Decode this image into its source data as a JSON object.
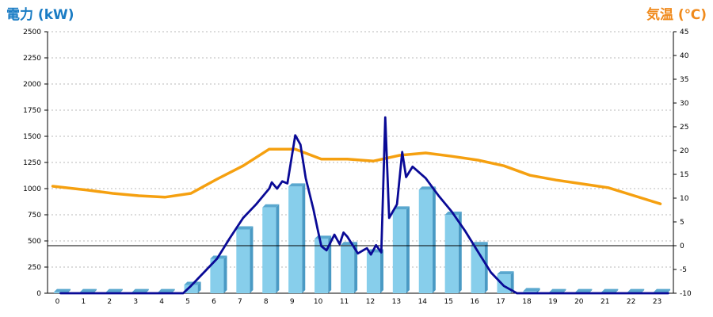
{
  "chart_data": {
    "type": "bar",
    "left_axis_label": "電力 (kW)",
    "right_axis_label": "気温 (℃)",
    "left_ylim": [
      0,
      2500
    ],
    "left_ticks": [
      0,
      250,
      500,
      750,
      1000,
      1250,
      1500,
      1750,
      2000,
      2250,
      2500
    ],
    "right_ylim": [
      -10,
      45
    ],
    "right_ticks": [
      -10,
      -5,
      0,
      5,
      10,
      15,
      20,
      25,
      30,
      35,
      40,
      45
    ],
    "categories": [
      "0",
      "1",
      "2",
      "3",
      "4",
      "5",
      "6",
      "7",
      "8",
      "9",
      "10",
      "11",
      "12",
      "13",
      "14",
      "15",
      "16",
      "17",
      "18",
      "19",
      "20",
      "21",
      "22",
      "23"
    ],
    "bars": {
      "values": [
        10,
        10,
        10,
        10,
        10,
        80,
        330,
        610,
        820,
        1020,
        520,
        460,
        390,
        800,
        990,
        750,
        460,
        180,
        20,
        10,
        10,
        10,
        10,
        10
      ]
    },
    "power_line": {
      "color": "#0a0a96",
      "points": [
        [
          0,
          0
        ],
        [
          4.7,
          0
        ],
        [
          5.0,
          70
        ],
        [
          5.5,
          200
        ],
        [
          6.0,
          330
        ],
        [
          6.5,
          530
        ],
        [
          7.0,
          720
        ],
        [
          7.5,
          850
        ],
        [
          8.0,
          1000
        ],
        [
          8.1,
          1060
        ],
        [
          8.3,
          1000
        ],
        [
          8.5,
          1070
        ],
        [
          8.7,
          1050
        ],
        [
          9.0,
          1510
        ],
        [
          9.2,
          1420
        ],
        [
          9.4,
          1100
        ],
        [
          9.7,
          800
        ],
        [
          9.85,
          620
        ],
        [
          10.0,
          450
        ],
        [
          10.2,
          410
        ],
        [
          10.5,
          560
        ],
        [
          10.7,
          470
        ],
        [
          10.85,
          580
        ],
        [
          11.0,
          540
        ],
        [
          11.2,
          460
        ],
        [
          11.4,
          380
        ],
        [
          11.6,
          410
        ],
        [
          11.75,
          430
        ],
        [
          11.9,
          370
        ],
        [
          12.1,
          460
        ],
        [
          12.3,
          390
        ],
        [
          12.45,
          1680
        ],
        [
          12.6,
          720
        ],
        [
          12.9,
          850
        ],
        [
          13.1,
          1350
        ],
        [
          13.25,
          1110
        ],
        [
          13.5,
          1210
        ],
        [
          14.0,
          1100
        ],
        [
          14.5,
          930
        ],
        [
          15.0,
          780
        ],
        [
          15.5,
          600
        ],
        [
          16.0,
          400
        ],
        [
          16.5,
          200
        ],
        [
          17.0,
          70
        ],
        [
          17.5,
          0
        ],
        [
          23.3,
          0
        ]
      ]
    },
    "temperature_line": {
      "color": "#f5a010",
      "points": [
        [
          -0.3,
          12.5
        ],
        [
          1,
          11.7
        ],
        [
          2,
          11.0
        ],
        [
          3,
          10.5
        ],
        [
          4,
          10.2
        ],
        [
          5,
          11.0
        ],
        [
          6,
          14.0
        ],
        [
          7,
          16.8
        ],
        [
          8,
          20.3
        ],
        [
          9,
          20.3
        ],
        [
          10,
          18.2
        ],
        [
          11,
          18.2
        ],
        [
          12,
          17.8
        ],
        [
          13,
          19.0
        ],
        [
          14,
          19.5
        ],
        [
          15,
          18.8
        ],
        [
          16,
          18.0
        ],
        [
          17,
          16.8
        ],
        [
          18,
          14.8
        ],
        [
          19,
          13.8
        ],
        [
          20,
          13.0
        ],
        [
          21,
          12.2
        ],
        [
          22,
          10.5
        ],
        [
          23,
          8.8
        ]
      ]
    },
    "colors": {
      "bar_face": "#87ceeb",
      "bar_side": "#4a9ac4",
      "bar_top": "#5aa8cf",
      "zero_line": "#000000"
    },
    "grid": true
  }
}
